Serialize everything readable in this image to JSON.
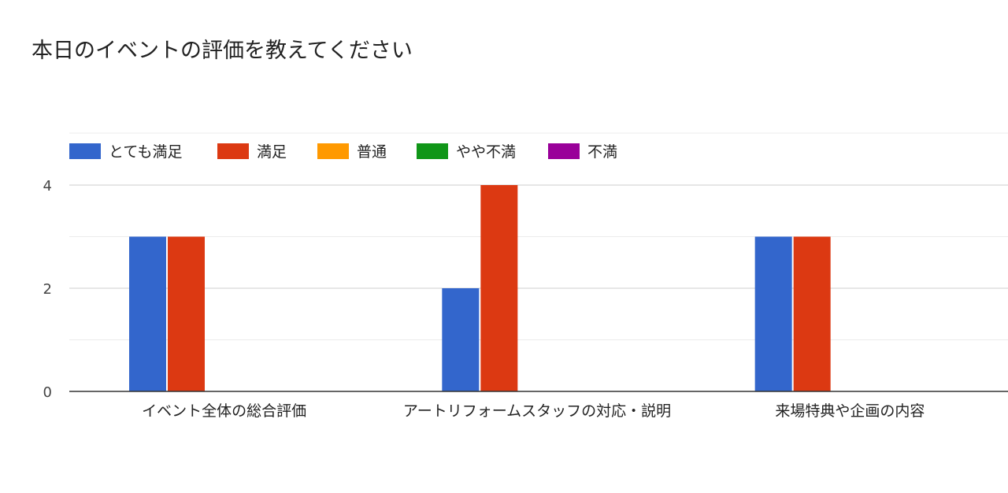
{
  "chart_data": {
    "type": "bar",
    "title": "本日のイベントの評価を教えてください",
    "xlabel": "",
    "ylabel": "",
    "categories": [
      "イベント全体の総合評価",
      "アートリフォームスタッフの対応・説明",
      "来場特典や企画の内容"
    ],
    "series": [
      {
        "name": "とても満足",
        "color": "#3366cc",
        "values": [
          3,
          2,
          3
        ]
      },
      {
        "name": "満足",
        "color": "#dc3912",
        "values": [
          3,
          4,
          3
        ]
      },
      {
        "name": "普通",
        "color": "#ff9900",
        "values": [
          0,
          0,
          0
        ]
      },
      {
        "name": "やや不満",
        "color": "#109618",
        "values": [
          0,
          0,
          0
        ]
      },
      {
        "name": "不満",
        "color": "#990099",
        "values": [
          0,
          0,
          0
        ]
      }
    ],
    "ylim": [
      0,
      4
    ],
    "yticks": [
      0,
      2,
      4
    ],
    "legend_position": "top-left",
    "grid": true
  }
}
